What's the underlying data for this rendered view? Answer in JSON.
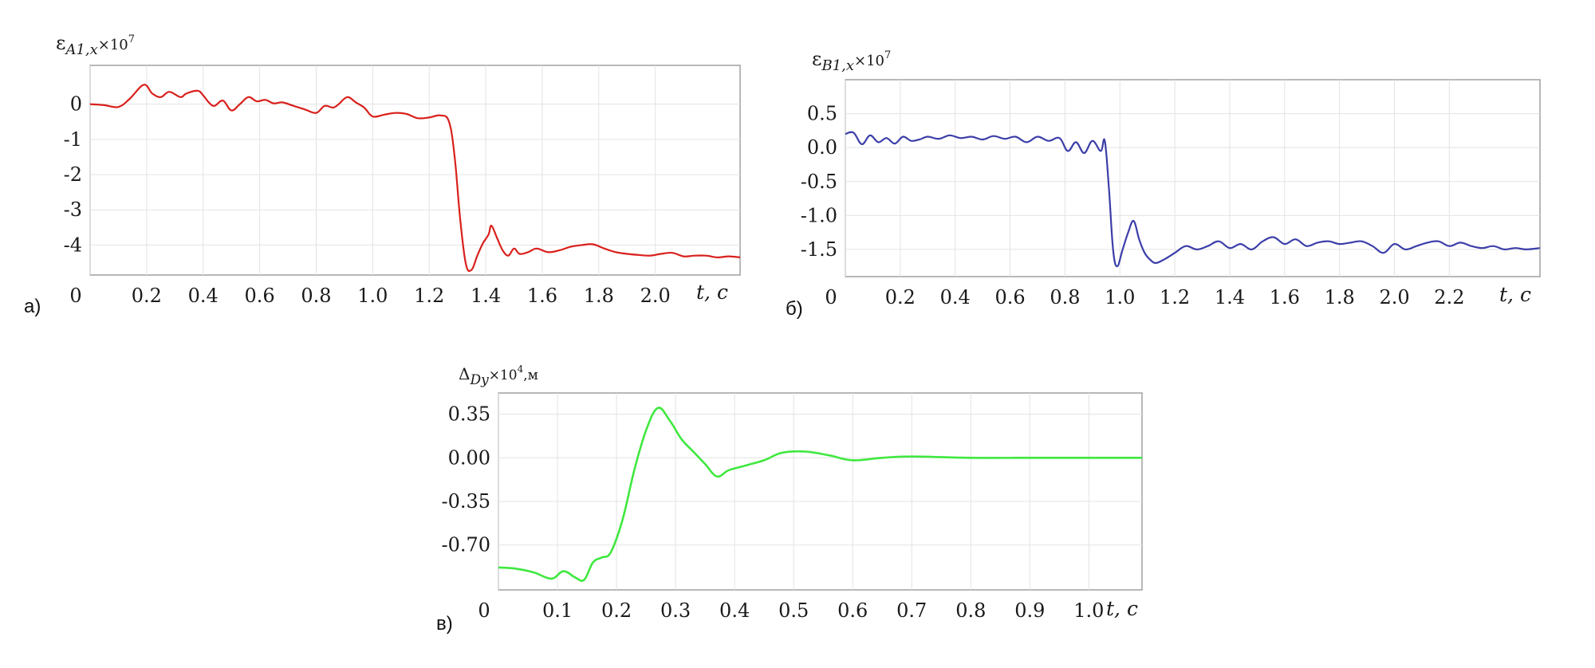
{
  "chart_data": [
    {
      "type": "line",
      "panel_label": "а)",
      "ylabel_main": "ε",
      "ylabel_sub": "A1,x",
      "ylabel_suffix": "×10",
      "ylabel_exp": "7",
      "xlabel": "t, c",
      "xlim": [
        0,
        2.3
      ],
      "ylim": [
        -4.85,
        1.1
      ],
      "x_ticks": [
        0,
        0.2,
        0.4,
        0.6,
        0.8,
        1.0,
        1.2,
        1.4,
        1.6,
        1.8,
        2.0
      ],
      "x_tick_labels": [
        "0",
        "0.2",
        "0.4",
        "0.6",
        "0.8",
        "1.0",
        "1.2",
        "1.4",
        "1.6",
        "1.8",
        "2.0"
      ],
      "y_ticks": [
        0,
        -1,
        -2,
        -3,
        -4
      ],
      "y_tick_labels": [
        "0",
        "-1",
        "-2",
        "-3",
        "-4"
      ],
      "grid": true,
      "color": "#d9201c",
      "series": [
        {
          "x": [
            0,
            0.05,
            0.1,
            0.14,
            0.19,
            0.22,
            0.25,
            0.28,
            0.32,
            0.34,
            0.38,
            0.4,
            0.42,
            0.44,
            0.47,
            0.5,
            0.53,
            0.56,
            0.59,
            0.62,
            0.65,
            0.68,
            0.72,
            0.76,
            0.8,
            0.83,
            0.86,
            0.88,
            0.91,
            0.94,
            0.97,
            1.0,
            1.04,
            1.08,
            1.12,
            1.16,
            1.2,
            1.24,
            1.27,
            1.29,
            1.31,
            1.33,
            1.35,
            1.37,
            1.39,
            1.41,
            1.42,
            1.44,
            1.46,
            1.48,
            1.5,
            1.52,
            1.55,
            1.58,
            1.62,
            1.66,
            1.7,
            1.74,
            1.78,
            1.82,
            1.86,
            1.9,
            1.94,
            1.98,
            2.02,
            2.06,
            2.1,
            2.14,
            2.18,
            2.22,
            2.26,
            2.3
          ],
          "y": [
            0.0,
            -0.03,
            -0.08,
            0.15,
            0.55,
            0.3,
            0.2,
            0.35,
            0.2,
            0.3,
            0.38,
            0.25,
            0.05,
            -0.05,
            0.1,
            -0.18,
            0.0,
            0.2,
            0.08,
            0.12,
            0.02,
            0.05,
            -0.05,
            -0.15,
            -0.25,
            -0.05,
            -0.1,
            0.0,
            0.2,
            0.05,
            -0.1,
            -0.35,
            -0.3,
            -0.25,
            -0.28,
            -0.4,
            -0.38,
            -0.32,
            -0.5,
            -1.5,
            -3.3,
            -4.55,
            -4.7,
            -4.3,
            -3.95,
            -3.7,
            -3.45,
            -3.8,
            -4.15,
            -4.3,
            -4.1,
            -4.25,
            -4.2,
            -4.1,
            -4.2,
            -4.15,
            -4.05,
            -4.0,
            -3.98,
            -4.1,
            -4.2,
            -4.25,
            -4.28,
            -4.3,
            -4.25,
            -4.22,
            -4.32,
            -4.3,
            -4.3,
            -4.35,
            -4.32,
            -4.35
          ]
        }
      ]
    },
    {
      "type": "line",
      "panel_label": "б)",
      "ylabel_main": "ε",
      "ylabel_sub": "B1,x",
      "ylabel_suffix": "×10",
      "ylabel_exp": "7",
      "xlabel": "t, c",
      "xlim": [
        0,
        2.53
      ],
      "ylim": [
        -1.9,
        1.0
      ],
      "x_ticks": [
        0,
        0.2,
        0.4,
        0.6,
        0.8,
        1.0,
        1.2,
        1.4,
        1.6,
        1.8,
        2.0,
        2.2
      ],
      "x_tick_labels": [
        "0",
        "0.2",
        "0.4",
        "0.6",
        "0.8",
        "1.0",
        "1.2",
        "1.4",
        "1.6",
        "1.8",
        "2.0",
        "2.2"
      ],
      "y_ticks": [
        0.5,
        0.0,
        -0.5,
        -1.0,
        -1.5
      ],
      "y_tick_labels": [
        "0.5",
        "0.0",
        "-0.5",
        "-1.0",
        "-1.5"
      ],
      "grid": true,
      "color": "#3b3ea8",
      "series": [
        {
          "x": [
            0,
            0.03,
            0.06,
            0.09,
            0.12,
            0.15,
            0.18,
            0.21,
            0.24,
            0.27,
            0.3,
            0.34,
            0.38,
            0.42,
            0.46,
            0.5,
            0.54,
            0.58,
            0.62,
            0.66,
            0.7,
            0.74,
            0.78,
            0.81,
            0.84,
            0.87,
            0.9,
            0.93,
            0.945,
            0.96,
            0.975,
            0.99,
            1.01,
            1.03,
            1.05,
            1.07,
            1.09,
            1.11,
            1.13,
            1.16,
            1.2,
            1.24,
            1.28,
            1.32,
            1.36,
            1.4,
            1.44,
            1.48,
            1.52,
            1.56,
            1.6,
            1.64,
            1.68,
            1.72,
            1.76,
            1.8,
            1.84,
            1.88,
            1.92,
            1.96,
            2.0,
            2.04,
            2.08,
            2.12,
            2.16,
            2.2,
            2.24,
            2.28,
            2.32,
            2.36,
            2.4,
            2.44,
            2.48,
            2.53
          ],
          "y": [
            0.2,
            0.22,
            0.05,
            0.18,
            0.08,
            0.14,
            0.06,
            0.16,
            0.1,
            0.12,
            0.16,
            0.13,
            0.18,
            0.14,
            0.16,
            0.12,
            0.17,
            0.13,
            0.16,
            0.08,
            0.16,
            0.1,
            0.14,
            -0.05,
            0.08,
            -0.08,
            0.1,
            -0.05,
            0.1,
            -0.6,
            -1.5,
            -1.75,
            -1.5,
            -1.25,
            -1.08,
            -1.35,
            -1.55,
            -1.65,
            -1.7,
            -1.65,
            -1.55,
            -1.45,
            -1.5,
            -1.45,
            -1.38,
            -1.48,
            -1.42,
            -1.5,
            -1.38,
            -1.32,
            -1.42,
            -1.35,
            -1.45,
            -1.4,
            -1.38,
            -1.42,
            -1.4,
            -1.38,
            -1.45,
            -1.55,
            -1.42,
            -1.5,
            -1.45,
            -1.4,
            -1.38,
            -1.45,
            -1.4,
            -1.45,
            -1.48,
            -1.45,
            -1.5,
            -1.48,
            -1.5,
            -1.48
          ]
        }
      ]
    },
    {
      "type": "line",
      "panel_label": "в)",
      "ylabel_main": "Δ",
      "ylabel_sub": "Dy",
      "ylabel_suffix": "×10",
      "ylabel_exp": "4",
      "ylabel_unit": ",м",
      "xlabel": "t, c",
      "xlim": [
        0,
        1.09
      ],
      "ylim": [
        -1.06,
        0.52
      ],
      "x_ticks": [
        0,
        0.1,
        0.2,
        0.3,
        0.4,
        0.5,
        0.6,
        0.7,
        0.8,
        0.9,
        1.0
      ],
      "x_tick_labels": [
        "0",
        "0.1",
        "0.2",
        "0.3",
        "0.4",
        "0.5",
        "0.6",
        "0.7",
        "0.8",
        "0.9",
        "1.0"
      ],
      "y_ticks": [
        0.35,
        0.0,
        -0.35,
        -0.7
      ],
      "y_tick_labels": [
        "0.35",
        "0.00",
        "-0.35",
        "-0.70"
      ],
      "grid": true,
      "color": "#3fe83f",
      "series": [
        {
          "x": [
            0,
            0.03,
            0.06,
            0.09,
            0.11,
            0.13,
            0.145,
            0.16,
            0.175,
            0.19,
            0.21,
            0.23,
            0.25,
            0.27,
            0.29,
            0.31,
            0.33,
            0.35,
            0.37,
            0.39,
            0.42,
            0.45,
            0.48,
            0.52,
            0.56,
            0.6,
            0.65,
            0.7,
            0.8,
            0.9,
            1.0,
            1.09
          ],
          "y": [
            -0.88,
            -0.89,
            -0.92,
            -0.97,
            -0.91,
            -0.96,
            -0.98,
            -0.84,
            -0.8,
            -0.76,
            -0.5,
            -0.1,
            0.22,
            0.4,
            0.3,
            0.15,
            0.05,
            -0.05,
            -0.15,
            -0.1,
            -0.06,
            -0.02,
            0.04,
            0.05,
            0.02,
            -0.02,
            0.0,
            0.01,
            0.0,
            0.0,
            0.0,
            0.0
          ]
        }
      ]
    }
  ]
}
